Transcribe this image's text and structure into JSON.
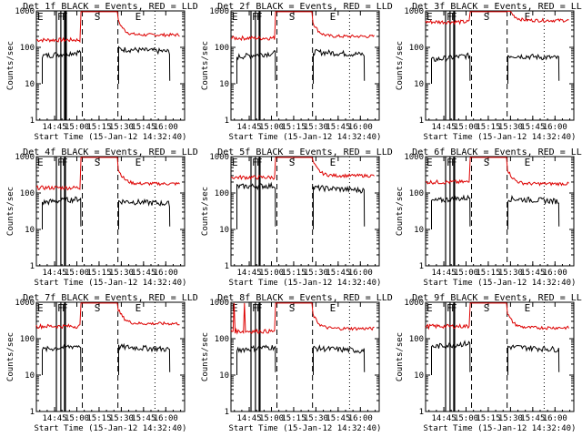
{
  "chart_data": {
    "type": "line",
    "layout": "3x3 grid",
    "xlabel": "Start Time (15-Jan-12 14:32:40)",
    "ylabel": "Counts/sec",
    "yscale": "log",
    "ylim": [
      1,
      1000
    ],
    "yticks": [
      1,
      10,
      100,
      1000
    ],
    "xlim_minutes_after_start": [
      0,
      100
    ],
    "xticks": [
      {
        "label": "14:45",
        "t": 12.3
      },
      {
        "label": "15:00",
        "t": 27.3
      },
      {
        "label": "15:15",
        "t": 42.3
      },
      {
        "label": "15:30",
        "t": 57.3
      },
      {
        "label": "15:45",
        "t": 72.3
      },
      {
        "label": "16:00",
        "t": 87.3
      }
    ],
    "series_legend": {
      "black": "Events",
      "red": "LLD"
    },
    "colors": {
      "events": "#000000",
      "lld": "#dd0000",
      "axis": "#000000",
      "background": "#ffffff"
    },
    "panels": [
      {
        "title": "Det 1f BLACK = Events, RED = LLD",
        "markers": [
          {
            "label": "E",
            "t": 0
          },
          {
            "label": "F",
            "t": 13.5
          },
          {
            "label": "F",
            "t": 16.5
          },
          {
            "label": "S",
            "t": 38.5
          },
          {
            "label": "E",
            "t": 66
          }
        ],
        "solid": [
          13.5,
          16.5,
          19,
          19.6,
          20.2
        ],
        "dashed": [
          31,
          55
        ],
        "dotted": [
          80
        ],
        "events_level": [
          58,
          75,
          90
        ],
        "lld_level": [
          160,
          220
        ],
        "gaps": [
          [
            31,
            55
          ]
        ],
        "lld_spikes": [],
        "events_cut": 90
      },
      {
        "title": "Det 2f BLACK = Events, RED = LLD",
        "markers": [
          {
            "label": "E",
            "t": 0
          },
          {
            "label": "F",
            "t": 13.5
          },
          {
            "label": "F",
            "t": 16.5
          },
          {
            "label": "S",
            "t": 38.5
          },
          {
            "label": "E",
            "t": 66
          }
        ],
        "solid": [
          13.5,
          16.5,
          19,
          19.6
        ],
        "dashed": [
          31,
          55
        ],
        "dotted": [
          80
        ],
        "events_level": [
          55,
          70,
          75
        ],
        "lld_level": [
          180,
          200
        ],
        "gaps": [
          [
            31,
            55
          ]
        ],
        "lld_spikes": [],
        "events_cut": 90
      },
      {
        "title": "Det 3f BLACK = Events, RED = LLD",
        "markers": [
          {
            "label": "E",
            "t": 0
          },
          {
            "label": "F",
            "t": 13.5
          },
          {
            "label": "F",
            "t": 16.5
          },
          {
            "label": "S",
            "t": 38.5
          },
          {
            "label": "E",
            "t": 66
          }
        ],
        "solid": [
          13.5,
          16.5,
          19,
          19.6
        ],
        "dashed": [
          31,
          55
        ],
        "dotted": [
          80
        ],
        "events_level": [
          45,
          60,
          60
        ],
        "lld_level": [
          500,
          550
        ],
        "gaps": [
          [
            31,
            55
          ]
        ],
        "lld_spikes": [],
        "events_cut": 90
      },
      {
        "title": "Det 4f BLACK = Events, RED = LLD",
        "markers": [
          {
            "label": "E",
            "t": 0
          },
          {
            "label": "F",
            "t": 13.5
          },
          {
            "label": "F",
            "t": 16.5
          },
          {
            "label": "S",
            "t": 38.5
          },
          {
            "label": "E",
            "t": 66
          }
        ],
        "solid": [
          13.5,
          16.5,
          19,
          19.6
        ],
        "dashed": [
          31,
          55
        ],
        "dotted": [
          80
        ],
        "events_level": [
          55,
          70,
          60
        ],
        "lld_level": [
          140,
          180
        ],
        "gaps": [
          [
            31,
            55
          ]
        ],
        "lld_spikes": [],
        "events_cut": 90
      },
      {
        "title": "Det 5f BLACK = Events, RED = LLD",
        "markers": [
          {
            "label": "E",
            "t": 0
          },
          {
            "label": "F",
            "t": 13.5
          },
          {
            "label": "F",
            "t": 16.5
          },
          {
            "label": "S",
            "t": 38.5
          },
          {
            "label": "E",
            "t": 66
          }
        ],
        "solid": [
          13.5,
          16.5,
          19,
          19.6
        ],
        "dashed": [
          31,
          55
        ],
        "dotted": [
          80
        ],
        "events_level": [
          150,
          160,
          140
        ],
        "lld_level": [
          270,
          300
        ],
        "gaps": [
          [
            31,
            55
          ]
        ],
        "lld_spikes": [],
        "events_cut": 90
      },
      {
        "title": "Det 6f BLACK = Events, RED = LLD",
        "markers": [
          {
            "label": "E",
            "t": 0
          },
          {
            "label": "F",
            "t": 13.5
          },
          {
            "label": "F",
            "t": 16.5
          },
          {
            "label": "S",
            "t": 38.5
          },
          {
            "label": "E",
            "t": 66
          }
        ],
        "solid": [
          13.5,
          16.5,
          19,
          19.6
        ],
        "dashed": [
          31,
          55
        ],
        "dotted": [
          80
        ],
        "events_level": [
          60,
          75,
          70
        ],
        "lld_level": [
          200,
          180
        ],
        "gaps": [
          [
            31,
            55
          ]
        ],
        "lld_spikes": [],
        "events_cut": 90
      },
      {
        "title": "Det 7f BLACK = Events, RED = LLD",
        "markers": [
          {
            "label": "E",
            "t": 0
          },
          {
            "label": "F",
            "t": 13.5
          },
          {
            "label": "F",
            "t": 16.5
          },
          {
            "label": "S",
            "t": 38.5
          },
          {
            "label": "E",
            "t": 66
          }
        ],
        "solid": [
          13.5,
          16.5,
          19,
          19.6
        ],
        "dashed": [
          31,
          55
        ],
        "dotted": [
          80
        ],
        "events_level": [
          50,
          65,
          60
        ],
        "lld_level": [
          220,
          260
        ],
        "gaps": [
          [
            31,
            55
          ]
        ],
        "lld_spikes": [],
        "events_cut": 90
      },
      {
        "title": "Det 8f BLACK = Events, RED = LLD",
        "markers": [
          {
            "label": "E",
            "t": 0
          },
          {
            "label": "F",
            "t": 13.5
          },
          {
            "label": "F",
            "t": 16.5
          },
          {
            "label": "S",
            "t": 38.5
          },
          {
            "label": "E",
            "t": 66
          }
        ],
        "solid": [
          13.5,
          16.5,
          19,
          19.6
        ],
        "dashed": [
          31,
          55
        ],
        "dotted": [
          80
        ],
        "events_level": [
          50,
          60,
          55
        ],
        "lld_level": [
          160,
          190
        ],
        "gaps": [
          [
            31,
            55
          ]
        ],
        "lld_spikes": [
          2,
          9
        ],
        "events_cut": 90
      },
      {
        "title": "Det 9f BLACK = Events, RED = LLD",
        "markers": [
          {
            "label": "E",
            "t": 0
          },
          {
            "label": "F",
            "t": 13.5
          },
          {
            "label": "F",
            "t": 16.5
          },
          {
            "label": "S",
            "t": 38.5
          },
          {
            "label": "E",
            "t": 66
          }
        ],
        "solid": [
          13.5,
          16.5,
          19,
          19.6
        ],
        "dashed": [
          31,
          55
        ],
        "dotted": [
          80
        ],
        "events_level": [
          60,
          75,
          60
        ],
        "lld_level": [
          220,
          200
        ],
        "gaps": [
          [
            31,
            55
          ]
        ],
        "lld_spikes": [],
        "events_cut": 90
      }
    ]
  }
}
